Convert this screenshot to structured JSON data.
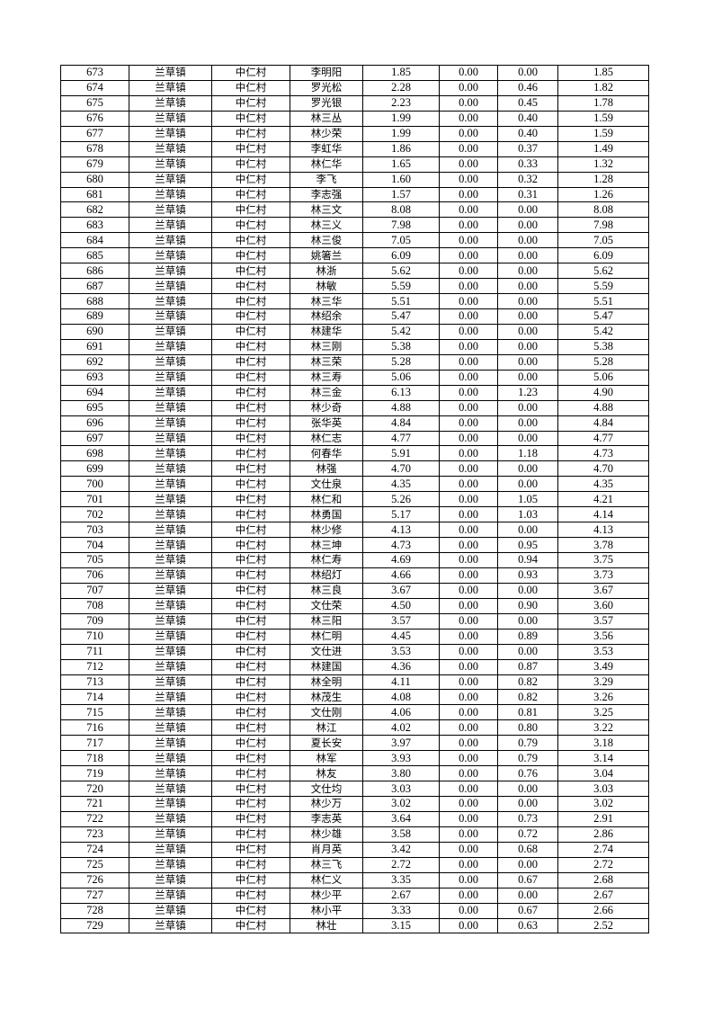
{
  "table": {
    "rows": [
      [
        "673",
        "兰草镇",
        "中仁村",
        "李明阳",
        "1.85",
        "0.00",
        "0.00",
        "1.85"
      ],
      [
        "674",
        "兰草镇",
        "中仁村",
        "罗光松",
        "2.28",
        "0.00",
        "0.46",
        "1.82"
      ],
      [
        "675",
        "兰草镇",
        "中仁村",
        "罗光银",
        "2.23",
        "0.00",
        "0.45",
        "1.78"
      ],
      [
        "676",
        "兰草镇",
        "中仁村",
        "林三丛",
        "1.99",
        "0.00",
        "0.40",
        "1.59"
      ],
      [
        "677",
        "兰草镇",
        "中仁村",
        "林少荣",
        "1.99",
        "0.00",
        "0.40",
        "1.59"
      ],
      [
        "678",
        "兰草镇",
        "中仁村",
        "李虹华",
        "1.86",
        "0.00",
        "0.37",
        "1.49"
      ],
      [
        "679",
        "兰草镇",
        "中仁村",
        "林仁华",
        "1.65",
        "0.00",
        "0.33",
        "1.32"
      ],
      [
        "680",
        "兰草镇",
        "中仁村",
        "李飞",
        "1.60",
        "0.00",
        "0.32",
        "1.28"
      ],
      [
        "681",
        "兰草镇",
        "中仁村",
        "李志强",
        "1.57",
        "0.00",
        "0.31",
        "1.26"
      ],
      [
        "682",
        "兰草镇",
        "中仁村",
        "林三文",
        "8.08",
        "0.00",
        "0.00",
        "8.08"
      ],
      [
        "683",
        "兰草镇",
        "中仁村",
        "林三义",
        "7.98",
        "0.00",
        "0.00",
        "7.98"
      ],
      [
        "684",
        "兰草镇",
        "中仁村",
        "林三俊",
        "7.05",
        "0.00",
        "0.00",
        "7.05"
      ],
      [
        "685",
        "兰草镇",
        "中仁村",
        "姚箸兰",
        "6.09",
        "0.00",
        "0.00",
        "6.09"
      ],
      [
        "686",
        "兰草镇",
        "中仁村",
        "林浙",
        "5.62",
        "0.00",
        "0.00",
        "5.62"
      ],
      [
        "687",
        "兰草镇",
        "中仁村",
        "林敏",
        "5.59",
        "0.00",
        "0.00",
        "5.59"
      ],
      [
        "688",
        "兰草镇",
        "中仁村",
        "林三华",
        "5.51",
        "0.00",
        "0.00",
        "5.51"
      ],
      [
        "689",
        "兰草镇",
        "中仁村",
        "林绍余",
        "5.47",
        "0.00",
        "0.00",
        "5.47"
      ],
      [
        "690",
        "兰草镇",
        "中仁村",
        "林建华",
        "5.42",
        "0.00",
        "0.00",
        "5.42"
      ],
      [
        "691",
        "兰草镇",
        "中仁村",
        "林三刚",
        "5.38",
        "0.00",
        "0.00",
        "5.38"
      ],
      [
        "692",
        "兰草镇",
        "中仁村",
        "林三荣",
        "5.28",
        "0.00",
        "0.00",
        "5.28"
      ],
      [
        "693",
        "兰草镇",
        "中仁村",
        "林三寿",
        "5.06",
        "0.00",
        "0.00",
        "5.06"
      ],
      [
        "694",
        "兰草镇",
        "中仁村",
        "林三金",
        "6.13",
        "0.00",
        "1.23",
        "4.90"
      ],
      [
        "695",
        "兰草镇",
        "中仁村",
        "林少奇",
        "4.88",
        "0.00",
        "0.00",
        "4.88"
      ],
      [
        "696",
        "兰草镇",
        "中仁村",
        "张华英",
        "4.84",
        "0.00",
        "0.00",
        "4.84"
      ],
      [
        "697",
        "兰草镇",
        "中仁村",
        "林仁志",
        "4.77",
        "0.00",
        "0.00",
        "4.77"
      ],
      [
        "698",
        "兰草镇",
        "中仁村",
        "何春华",
        "5.91",
        "0.00",
        "1.18",
        "4.73"
      ],
      [
        "699",
        "兰草镇",
        "中仁村",
        "林强",
        "4.70",
        "0.00",
        "0.00",
        "4.70"
      ],
      [
        "700",
        "兰草镇",
        "中仁村",
        "文仕泉",
        "4.35",
        "0.00",
        "0.00",
        "4.35"
      ],
      [
        "701",
        "兰草镇",
        "中仁村",
        "林仁和",
        "5.26",
        "0.00",
        "1.05",
        "4.21"
      ],
      [
        "702",
        "兰草镇",
        "中仁村",
        "林勇国",
        "5.17",
        "0.00",
        "1.03",
        "4.14"
      ],
      [
        "703",
        "兰草镇",
        "中仁村",
        "林少修",
        "4.13",
        "0.00",
        "0.00",
        "4.13"
      ],
      [
        "704",
        "兰草镇",
        "中仁村",
        "林三坤",
        "4.73",
        "0.00",
        "0.95",
        "3.78"
      ],
      [
        "705",
        "兰草镇",
        "中仁村",
        "林仁寿",
        "4.69",
        "0.00",
        "0.94",
        "3.75"
      ],
      [
        "706",
        "兰草镇",
        "中仁村",
        "林绍灯",
        "4.66",
        "0.00",
        "0.93",
        "3.73"
      ],
      [
        "707",
        "兰草镇",
        "中仁村",
        "林三良",
        "3.67",
        "0.00",
        "0.00",
        "3.67"
      ],
      [
        "708",
        "兰草镇",
        "中仁村",
        "文仕荣",
        "4.50",
        "0.00",
        "0.90",
        "3.60"
      ],
      [
        "709",
        "兰草镇",
        "中仁村",
        "林三阳",
        "3.57",
        "0.00",
        "0.00",
        "3.57"
      ],
      [
        "710",
        "兰草镇",
        "中仁村",
        "林仁明",
        "4.45",
        "0.00",
        "0.89",
        "3.56"
      ],
      [
        "711",
        "兰草镇",
        "中仁村",
        "文仕进",
        "3.53",
        "0.00",
        "0.00",
        "3.53"
      ],
      [
        "712",
        "兰草镇",
        "中仁村",
        "林建国",
        "4.36",
        "0.00",
        "0.87",
        "3.49"
      ],
      [
        "713",
        "兰草镇",
        "中仁村",
        "林全明",
        "4.11",
        "0.00",
        "0.82",
        "3.29"
      ],
      [
        "714",
        "兰草镇",
        "中仁村",
        "林茂生",
        "4.08",
        "0.00",
        "0.82",
        "3.26"
      ],
      [
        "715",
        "兰草镇",
        "中仁村",
        "文仕刚",
        "4.06",
        "0.00",
        "0.81",
        "3.25"
      ],
      [
        "716",
        "兰草镇",
        "中仁村",
        "林江",
        "4.02",
        "0.00",
        "0.80",
        "3.22"
      ],
      [
        "717",
        "兰草镇",
        "中仁村",
        "夏长安",
        "3.97",
        "0.00",
        "0.79",
        "3.18"
      ],
      [
        "718",
        "兰草镇",
        "中仁村",
        "林军",
        "3.93",
        "0.00",
        "0.79",
        "3.14"
      ],
      [
        "719",
        "兰草镇",
        "中仁村",
        "林友",
        "3.80",
        "0.00",
        "0.76",
        "3.04"
      ],
      [
        "720",
        "兰草镇",
        "中仁村",
        "文仕均",
        "3.03",
        "0.00",
        "0.00",
        "3.03"
      ],
      [
        "721",
        "兰草镇",
        "中仁村",
        "林少万",
        "3.02",
        "0.00",
        "0.00",
        "3.02"
      ],
      [
        "722",
        "兰草镇",
        "中仁村",
        "李志英",
        "3.64",
        "0.00",
        "0.73",
        "2.91"
      ],
      [
        "723",
        "兰草镇",
        "中仁村",
        "林少雄",
        "3.58",
        "0.00",
        "0.72",
        "2.86"
      ],
      [
        "724",
        "兰草镇",
        "中仁村",
        "肖月英",
        "3.42",
        "0.00",
        "0.68",
        "2.74"
      ],
      [
        "725",
        "兰草镇",
        "中仁村",
        "林三飞",
        "2.72",
        "0.00",
        "0.00",
        "2.72"
      ],
      [
        "726",
        "兰草镇",
        "中仁村",
        "林仁义",
        "3.35",
        "0.00",
        "0.67",
        "2.68"
      ],
      [
        "727",
        "兰草镇",
        "中仁村",
        "林少平",
        "2.67",
        "0.00",
        "0.00",
        "2.67"
      ],
      [
        "728",
        "兰草镇",
        "中仁村",
        "林小平",
        "3.33",
        "0.00",
        "0.67",
        "2.66"
      ],
      [
        "729",
        "兰草镇",
        "中仁村",
        "林壮",
        "3.15",
        "0.00",
        "0.63",
        "2.52"
      ]
    ]
  }
}
